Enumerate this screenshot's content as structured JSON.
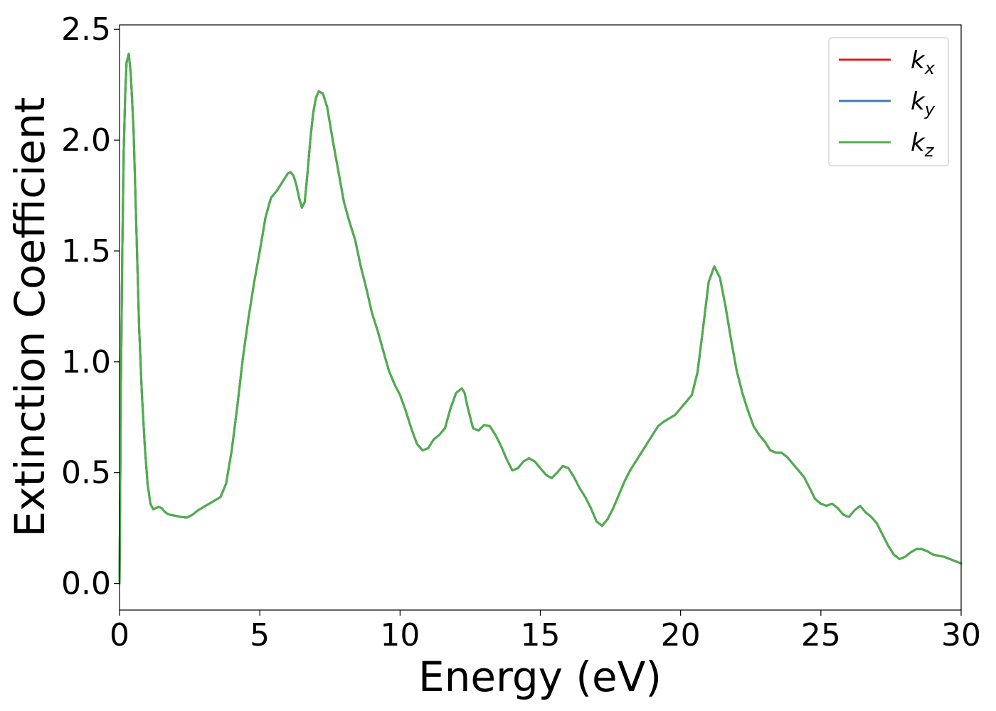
{
  "chart_data": {
    "type": "line",
    "title": "",
    "xlabel": "Energy (eV)",
    "ylabel": "Extinction Coefficient",
    "xlim": [
      0,
      30
    ],
    "ylim": [
      -0.12,
      2.52
    ],
    "xticks": [
      0,
      5,
      10,
      15,
      20,
      25,
      30
    ],
    "xtick_labels": [
      "0",
      "5",
      "10",
      "15",
      "20",
      "25",
      "30"
    ],
    "yticks": [
      0.0,
      0.5,
      1.0,
      1.5,
      2.0,
      2.5
    ],
    "ytick_labels": [
      "0.0",
      "0.5",
      "1.0",
      "1.5",
      "2.0",
      "2.5"
    ],
    "grid": false,
    "legend_position": "top-right",
    "series": [
      {
        "name": "k_x",
        "label_base": "k",
        "label_sub": "x",
        "color": "#e41a1c",
        "x": [
          0.0,
          0.05,
          0.1,
          0.15,
          0.2,
          0.25,
          0.33,
          0.4,
          0.5,
          0.6,
          0.7,
          0.8,
          0.9,
          1.0,
          1.1,
          1.2,
          1.3,
          1.4,
          1.5,
          1.6,
          1.7,
          1.8,
          2.0,
          2.2,
          2.4,
          2.6,
          2.8,
          3.0,
          3.2,
          3.4,
          3.6,
          3.8,
          4.0,
          4.2,
          4.4,
          4.6,
          4.8,
          5.0,
          5.2,
          5.4,
          5.6,
          5.8,
          6.0,
          6.1,
          6.2,
          6.3,
          6.4,
          6.5,
          6.6,
          6.7,
          6.8,
          6.9,
          7.0,
          7.1,
          7.25,
          7.4,
          7.6,
          7.8,
          8.0,
          8.2,
          8.4,
          8.6,
          8.8,
          9.0,
          9.2,
          9.4,
          9.6,
          9.8,
          10.0,
          10.2,
          10.4,
          10.6,
          10.8,
          11.0,
          11.1,
          11.2,
          11.4,
          11.6,
          11.8,
          12.0,
          12.2,
          12.3,
          12.4,
          12.6,
          12.8,
          13.0,
          13.2,
          13.4,
          13.6,
          13.8,
          14.0,
          14.2,
          14.4,
          14.6,
          14.8,
          15.0,
          15.2,
          15.4,
          15.6,
          15.8,
          16.0,
          16.2,
          16.4,
          16.6,
          16.8,
          17.0,
          17.2,
          17.4,
          17.6,
          17.8,
          18.0,
          18.2,
          18.4,
          18.6,
          18.8,
          19.0,
          19.2,
          19.4,
          19.6,
          19.8,
          20.0,
          20.2,
          20.4,
          20.6,
          20.8,
          21.0,
          21.2,
          21.4,
          21.6,
          21.8,
          22.0,
          22.2,
          22.4,
          22.6,
          22.8,
          23.0,
          23.2,
          23.4,
          23.6,
          23.8,
          24.0,
          24.2,
          24.4,
          24.6,
          24.8,
          25.0,
          25.2,
          25.4,
          25.6,
          25.8,
          26.0,
          26.2,
          26.4,
          26.6,
          26.8,
          27.0,
          27.2,
          27.4,
          27.6,
          27.8,
          28.0,
          28.2,
          28.4,
          28.6,
          28.8,
          29.0,
          29.2,
          29.4,
          29.6,
          29.8,
          30.0
        ],
        "y": [
          0.0,
          0.9,
          1.5,
          1.95,
          2.2,
          2.35,
          2.39,
          2.3,
          2.05,
          1.6,
          1.15,
          0.85,
          0.62,
          0.45,
          0.36,
          0.335,
          0.34,
          0.345,
          0.34,
          0.325,
          0.315,
          0.31,
          0.305,
          0.3,
          0.297,
          0.31,
          0.33,
          0.345,
          0.36,
          0.375,
          0.39,
          0.45,
          0.6,
          0.8,
          1.02,
          1.2,
          1.36,
          1.5,
          1.65,
          1.74,
          1.77,
          1.81,
          1.85,
          1.855,
          1.84,
          1.8,
          1.74,
          1.695,
          1.72,
          1.85,
          2.0,
          2.12,
          2.19,
          2.22,
          2.21,
          2.15,
          2.0,
          1.86,
          1.72,
          1.63,
          1.55,
          1.43,
          1.33,
          1.22,
          1.14,
          1.05,
          0.96,
          0.9,
          0.85,
          0.78,
          0.7,
          0.63,
          0.6,
          0.61,
          0.63,
          0.65,
          0.67,
          0.7,
          0.79,
          0.86,
          0.88,
          0.86,
          0.8,
          0.7,
          0.69,
          0.715,
          0.71,
          0.67,
          0.62,
          0.56,
          0.51,
          0.52,
          0.55,
          0.565,
          0.55,
          0.52,
          0.49,
          0.475,
          0.5,
          0.53,
          0.52,
          0.48,
          0.43,
          0.39,
          0.34,
          0.28,
          0.26,
          0.29,
          0.34,
          0.4,
          0.46,
          0.51,
          0.55,
          0.59,
          0.63,
          0.67,
          0.71,
          0.73,
          0.745,
          0.76,
          0.79,
          0.82,
          0.85,
          0.95,
          1.15,
          1.36,
          1.43,
          1.38,
          1.25,
          1.1,
          0.96,
          0.86,
          0.78,
          0.71,
          0.67,
          0.64,
          0.6,
          0.59,
          0.59,
          0.57,
          0.54,
          0.51,
          0.48,
          0.43,
          0.38,
          0.36,
          0.35,
          0.36,
          0.34,
          0.31,
          0.3,
          0.33,
          0.35,
          0.32,
          0.3,
          0.27,
          0.22,
          0.17,
          0.13,
          0.11,
          0.12,
          0.14,
          0.155,
          0.155,
          0.145,
          0.13,
          0.125,
          0.12,
          0.11,
          0.1,
          0.09
        ]
      },
      {
        "name": "k_y",
        "label_base": "k",
        "label_sub": "y",
        "color": "#377eb8",
        "same_as": "k_x"
      },
      {
        "name": "k_z",
        "label_base": "k",
        "label_sub": "z",
        "color": "#4daf4a",
        "same_as": "k_x"
      }
    ]
  }
}
